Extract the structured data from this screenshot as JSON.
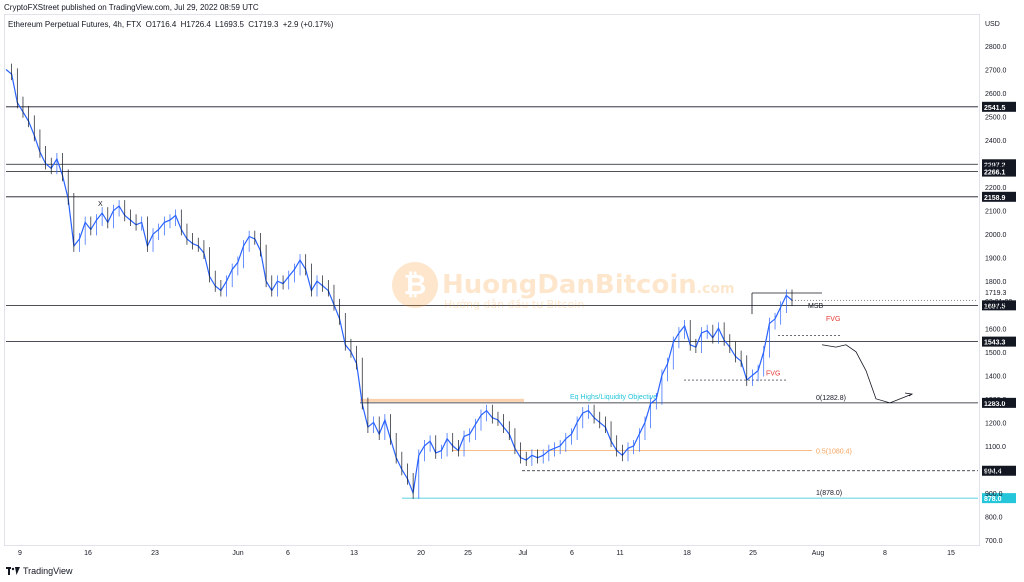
{
  "header": {
    "publisher": "CryptoFXStreet published on TradingView.com, Jul 29, 2022 08:59 UTC"
  },
  "symbol": {
    "name": "Ethereum Perpetual Futures, 4h, FTX",
    "open": "O1716.4",
    "high": "H1726.4",
    "low": "L1693.5",
    "close": "C1719.3",
    "change": "+2.9 (+0.17%)"
  },
  "footer": {
    "brand": "TradingView"
  },
  "watermark": {
    "title": "HuongDanBitcoin",
    "domain": ".com",
    "subtitle": "Hướng dẫn đầu tư Bitcoin"
  },
  "colors": {
    "up": "#2962ff",
    "down": "#131722",
    "blue_line": "#2962ff",
    "orange": "#f7a35c",
    "cyan": "#26c6da",
    "red": "#e53935"
  },
  "chart_data": {
    "type": "line",
    "title": "",
    "currency_label": "USD",
    "y_axis_ticks": [
      2800,
      2700,
      2600,
      2500,
      2400,
      2300,
      2200,
      2100,
      2000,
      1900,
      1800,
      1700,
      1600,
      1500,
      1400,
      1300,
      1200,
      1100,
      1000,
      900,
      800,
      700
    ],
    "y_axis_tick_labels": [
      "2800.0",
      "2700.0",
      "2600.0",
      "2500.0",
      "2400.0",
      "2300.0",
      "2200.0",
      "2100.0",
      "2000.0",
      "1900.0",
      "1800.0",
      "1700.0",
      "1600.0",
      "1500.0",
      "1400.0",
      "1300.0",
      "1200.0",
      "1100.0",
      "1000.0",
      "900.0",
      "800.0",
      "700.0"
    ],
    "x_axis_labels": [
      "9",
      "16",
      "23",
      "Jun",
      "6",
      "13",
      "20",
      "25",
      "Jul",
      "6",
      "11",
      "18",
      "25",
      "Aug",
      "8",
      "15"
    ],
    "ylim": [
      660,
      2920
    ],
    "grid": false,
    "series": [
      {
        "values": [
          2700,
          2680,
          2560,
          2520,
          2480,
          2420,
          2350,
          2300,
          2280,
          2320,
          2250,
          2150,
          1950,
          1980,
          2050,
          2020,
          2060,
          2090,
          2050,
          2100,
          2120,
          2080,
          2060,
          2040,
          2050,
          1950,
          2000,
          2020,
          2050,
          2060,
          2080,
          2020,
          1980,
          1960,
          1950,
          1920,
          1820,
          1780,
          1760,
          1800,
          1850,
          1880,
          1950,
          1990,
          1980,
          1930,
          1800,
          1760,
          1800,
          1790,
          1820,
          1850,
          1890,
          1850,
          1760,
          1800,
          1780,
          1760,
          1700,
          1640,
          1530,
          1500,
          1450,
          1280,
          1180,
          1200,
          1150,
          1210,
          1130,
          1050,
          1000,
          960,
          900,
          1060,
          1100,
          1120,
          1070,
          1080,
          1130,
          1100,
          1080,
          1140,
          1150,
          1190,
          1230,
          1250,
          1220,
          1210,
          1180,
          1150,
          1090,
          1050,
          1040,
          1060,
          1050,
          1060,
          1080,
          1090,
          1100,
          1130,
          1150,
          1200,
          1240,
          1250,
          1220,
          1200,
          1180,
          1120,
          1080,
          1060,
          1090,
          1100,
          1150,
          1200,
          1280,
          1300,
          1400,
          1450,
          1540,
          1580,
          1610,
          1530,
          1520,
          1580,
          1590,
          1560,
          1600,
          1550,
          1520,
          1480,
          1460,
          1380,
          1400,
          1420,
          1500,
          1620,
          1640,
          1690,
          1740,
          1719
        ]
      }
    ],
    "horizontal_levels": [
      {
        "value": 2541.5,
        "label": "2541.5"
      },
      {
        "value": 2297.2,
        "label": "2297.2"
      },
      {
        "value": 2266.1,
        "label": "2266.1"
      },
      {
        "value": 2158.9,
        "label": "2158.9"
      },
      {
        "value": 1697.5,
        "label": "1697.5"
      },
      {
        "value": 1543.3,
        "label": "1543.3"
      },
      {
        "value": 1283.0,
        "label": "1283.0"
      },
      {
        "value": 994.4,
        "label": "994.4"
      },
      {
        "value": 878.0,
        "label": "878.0"
      }
    ],
    "last_price": {
      "value": 1719.3,
      "label": "1719.3",
      "countdown": "03:01:00"
    },
    "annotations": {
      "msb": "MSB",
      "fvg_upper": "FVG",
      "fvg_lower": "FVG",
      "eq_highs": "Eq Highs/Liquidity Objective",
      "fib_0": "0(1282.8)",
      "fib_05": "0.5(1080.4)",
      "fib_1": "1(878.0)",
      "x_mark": "X"
    }
  }
}
